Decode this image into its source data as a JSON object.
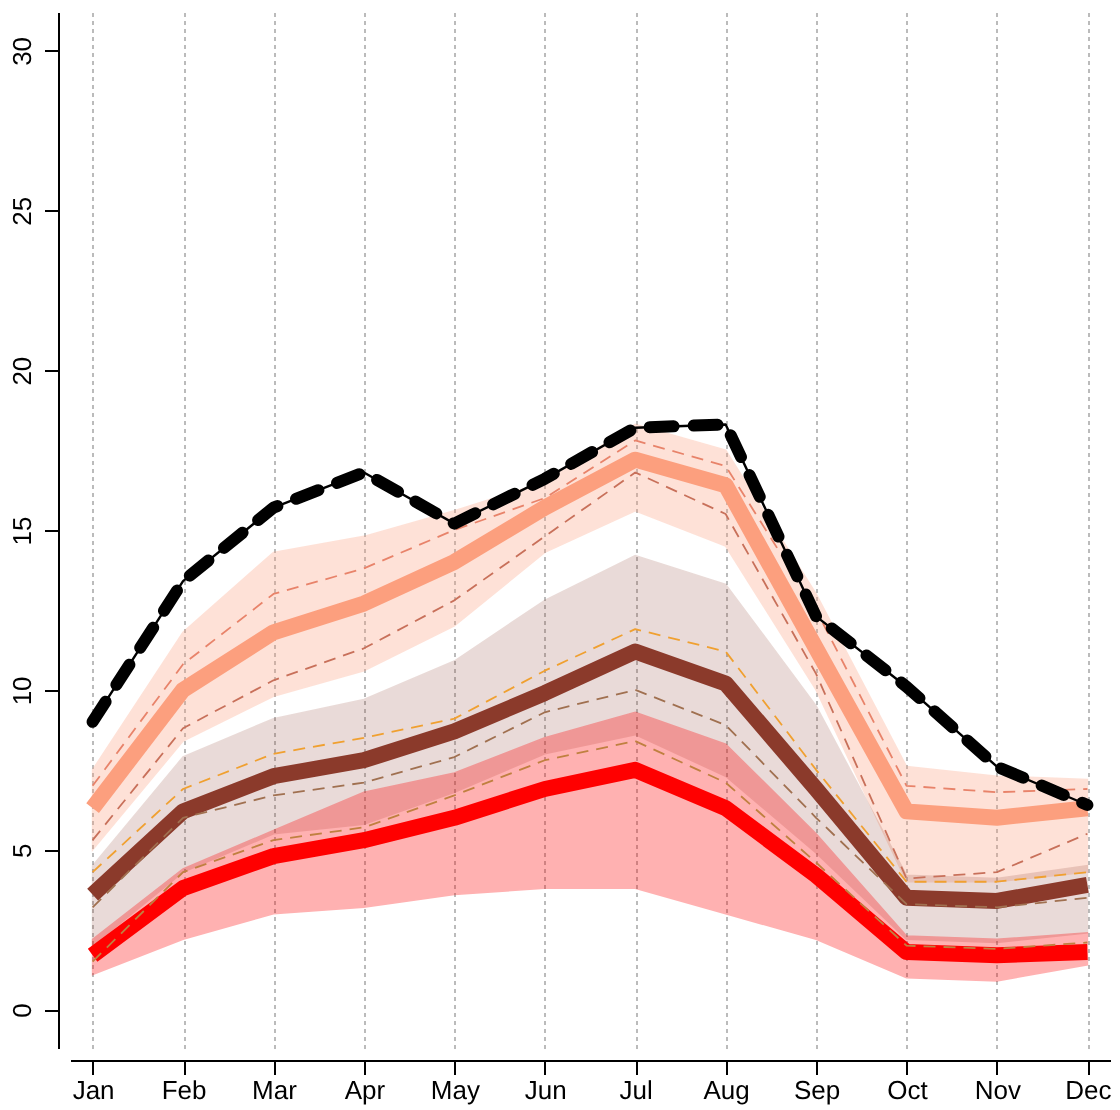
{
  "chart_data": {
    "type": "line",
    "categories": [
      "Jan",
      "Feb",
      "Mar",
      "Apr",
      "May",
      "Jun",
      "Jul",
      "Aug",
      "Sep",
      "Oct",
      "Nov",
      "Dec"
    ],
    "ylim": [
      -1.2,
      31.2
    ],
    "yticks": [
      0,
      5,
      10,
      15,
      20,
      25,
      30
    ],
    "grid": "x",
    "series": [
      {
        "color": "#fc9f7e",
        "values": [
          6.3,
          10.0,
          11.8,
          12.7,
          14.0,
          15.7,
          17.2,
          16.4,
          11.3,
          6.2,
          6.0,
          6.3
        ],
        "lower": [
          5.0,
          8.4,
          9.8,
          10.6,
          12.0,
          14.3,
          15.6,
          14.5,
          10.0,
          4.0,
          4.0,
          4.3
        ],
        "upper": [
          7.5,
          11.8,
          14.3,
          14.8,
          15.6,
          16.5,
          18.3,
          17.5,
          13.0,
          7.6,
          7.3,
          7.2
        ]
      },
      {
        "color": "#8b3a2b",
        "values": [
          3.6,
          6.2,
          7.3,
          7.8,
          8.7,
          9.9,
          11.2,
          10.2,
          6.9,
          3.5,
          3.4,
          3.9
        ],
        "lower": [
          2.0,
          4.3,
          5.5,
          5.8,
          6.8,
          8.0,
          8.6,
          7.3,
          4.9,
          2.2,
          2.1,
          2.4
        ],
        "upper": [
          4.5,
          7.9,
          9.1,
          9.7,
          10.9,
          12.8,
          14.2,
          13.3,
          9.5,
          4.2,
          4.1,
          4.5
        ]
      },
      {
        "color": "#ff0000",
        "values": [
          1.7,
          3.8,
          4.8,
          5.3,
          6.0,
          6.9,
          7.5,
          6.3,
          4.2,
          1.8,
          1.7,
          1.8
        ],
        "lower": [
          1.1,
          2.2,
          3.0,
          3.2,
          3.6,
          3.8,
          3.8,
          3.0,
          2.2,
          1.0,
          0.9,
          1.4
        ],
        "upper": [
          2.2,
          4.4,
          5.6,
          6.8,
          7.4,
          8.5,
          9.3,
          8.3,
          5.5,
          2.3,
          2.2,
          2.4
        ]
      },
      {
        "color": "#e8836a",
        "line_style": "dashed",
        "values": [
          7.0,
          10.8,
          13.0,
          13.8,
          15.0,
          16.0,
          17.8,
          17.0,
          12.5,
          7.0,
          6.8,
          6.9
        ]
      },
      {
        "color": "#c8705a",
        "line_style": "dashed",
        "values": [
          5.3,
          8.8,
          10.3,
          11.3,
          12.8,
          14.8,
          16.8,
          15.5,
          10.5,
          4.1,
          4.3,
          5.5
        ]
      },
      {
        "color": "#f0a030",
        "line_style": "dashed",
        "values": [
          4.3,
          6.9,
          8.0,
          8.5,
          9.1,
          10.6,
          11.9,
          11.2,
          7.5,
          4.0,
          4.0,
          4.3
        ]
      },
      {
        "color": "#a07050",
        "line_style": "dashed",
        "values": [
          3.2,
          6.0,
          6.7,
          7.1,
          7.9,
          9.3,
          10.0,
          8.9,
          6.0,
          3.3,
          3.2,
          3.5
        ]
      },
      {
        "color": "#c08040",
        "line_style": "dashed",
        "values": [
          1.5,
          4.3,
          5.3,
          5.7,
          6.7,
          7.8,
          8.4,
          7.1,
          4.6,
          2.0,
          1.9,
          2.1
        ]
      },
      {
        "color": "#000000",
        "line_style": "dashed",
        "values": [
          9.0,
          13.4,
          15.7,
          16.8,
          15.2,
          16.6,
          18.2,
          18.3,
          12.3,
          10.1,
          7.6,
          6.4
        ]
      }
    ]
  }
}
